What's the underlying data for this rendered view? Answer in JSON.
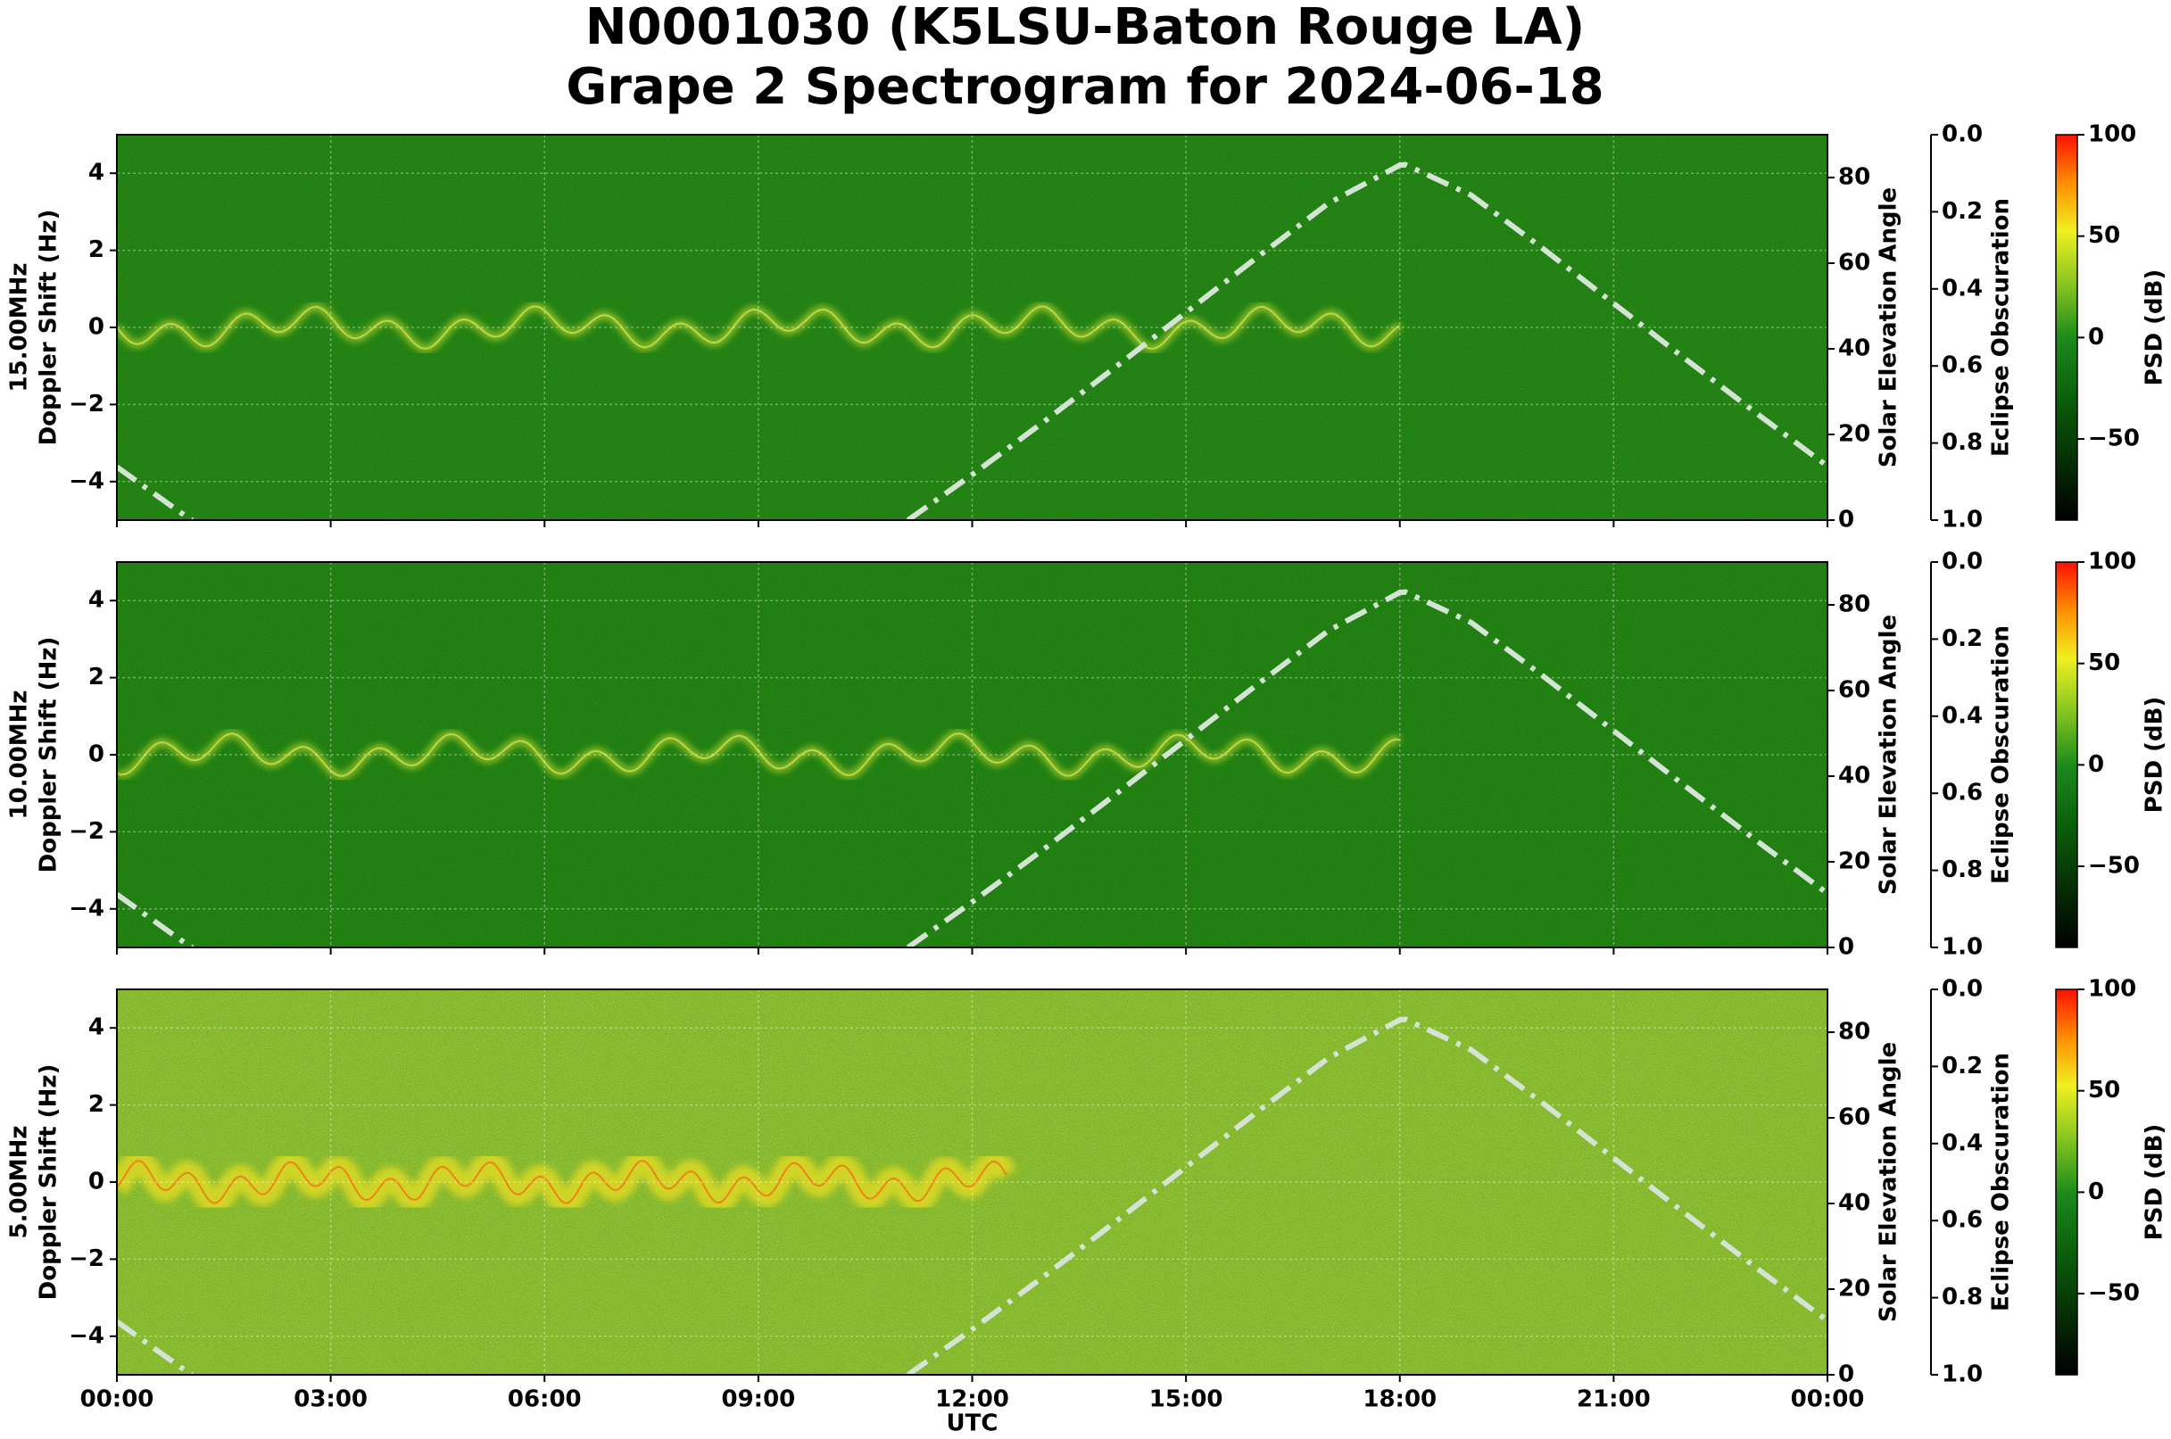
{
  "chart_data": {
    "type": "spectrogram",
    "title": [
      "N0001030 (K5LSU-Baton Rouge LA)",
      "Grape 2 Spectrogram for 2024-06-18"
    ],
    "xlabel": "UTC",
    "xlim": [
      0,
      24
    ],
    "xticks": [
      {
        "value": 0,
        "label": "00:00"
      },
      {
        "value": 3,
        "label": "03:00"
      },
      {
        "value": 6,
        "label": "06:00"
      },
      {
        "value": 9,
        "label": "09:00"
      },
      {
        "value": 12,
        "label": "12:00"
      },
      {
        "value": 15,
        "label": "15:00"
      },
      {
        "value": 18,
        "label": "18:00"
      },
      {
        "value": 21,
        "label": "21:00"
      },
      {
        "value": 24,
        "label": "00:00"
      }
    ],
    "ylabel": "Doppler Shift (Hz)",
    "ylim": [
      -5,
      5
    ],
    "yticks": [
      {
        "value": -4,
        "label": "−4"
      },
      {
        "value": -2,
        "label": "−2"
      },
      0,
      2,
      4
    ],
    "y2label": "Solar Elevation Angle",
    "y2lim": [
      0,
      90
    ],
    "y2ticks": [
      0,
      20,
      40,
      60,
      80
    ],
    "eclipse_label": "Eclipse Obscuration",
    "eclipse_lim": [
      0,
      1
    ],
    "eclipse_ticks": [
      {
        "value": 0,
        "label": "0.0"
      },
      0.2,
      0.4,
      0.6,
      0.8,
      {
        "value": 1,
        "label": "1.0"
      }
    ],
    "colorbar_label": "PSD (dB)",
    "colorbar_lim": [
      -90,
      100
    ],
    "colorbar_ticks": [
      100,
      50,
      0,
      {
        "value": -50,
        "label": "−50"
      }
    ],
    "grid": true,
    "solar_color": "#d4e4d4",
    "x": [
      0,
      1,
      1.06,
      6.08,
      11.1,
      12,
      13,
      14,
      15,
      16,
      17,
      18,
      18.08,
      19,
      20,
      21,
      22,
      23,
      24
    ],
    "elevation": [
      12.4,
      0.5,
      0,
      null,
      0,
      10.6,
      22.9,
      35.6,
      48.5,
      61.4,
      74.0,
      82.9,
      83.0,
      75.9,
      63.5,
      50.6,
      37.7,
      25.0,
      12.6
    ],
    "panels": [
      {
        "frequency": "15.00MHz",
        "background": "#1f7f12"
      },
      {
        "frequency": "10.00MHz",
        "background": "#1d7d10"
      },
      {
        "frequency": "5.00MHz",
        "background": "#7fb52a"
      }
    ]
  }
}
